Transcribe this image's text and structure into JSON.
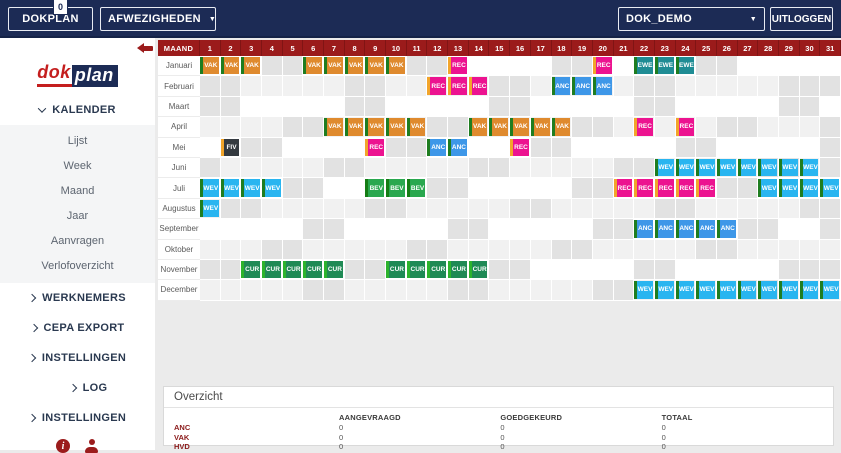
{
  "topbar": {
    "brand": "DOKPLAN",
    "notification_count": "0",
    "absence_type_select": "AFWEZIGHEDEN",
    "environment_select": "DOK_DEMO",
    "logout_label": "UITLOGGEN"
  },
  "sidebar": {
    "logo_dok": "dok",
    "logo_plan": "plan",
    "info_glyph": "i",
    "sections": [
      {
        "label": "KALENDER",
        "state": "expanded",
        "items": [
          "Lijst",
          "Week",
          "Maand",
          "Jaar",
          "Aanvragen",
          "Verlofoverzicht"
        ]
      },
      {
        "label": "WERKNEMERS",
        "state": "collapsed"
      },
      {
        "label": "CEPA EXPORT",
        "state": "collapsed"
      },
      {
        "label": "INSTELLINGEN",
        "state": "collapsed"
      },
      {
        "label": "LOG",
        "state": "collapsed",
        "indent": true
      },
      {
        "label": "INSTELLINGEN",
        "state": "collapsed"
      }
    ]
  },
  "calendar": {
    "corner_header": "MAAND",
    "day_count": 31,
    "header_color": "#9b1b1b",
    "badge_types": {
      "VAK": {
        "bg": "#df8a2e",
        "edge": "#1f7d20"
      },
      "REC": {
        "bg": "#ec1390",
        "edge": "#f2a52b"
      },
      "EWE": {
        "bg": "#1f8c94",
        "edge": "#1f7d20"
      },
      "ANC": {
        "bg": "#3e97e8",
        "edge": "#1f7d20"
      },
      "FIV": {
        "bg": "#343a40",
        "edge": "#f2a52b"
      },
      "WEV": {
        "bg": "#29b5f0",
        "edge": "#1f7d20"
      },
      "BEV": {
        "bg": "#2aa84f",
        "edge": "#157d15"
      },
      "CUR": {
        "bg": "#1f8a55",
        "edge": "#2db32d"
      }
    },
    "months": [
      {
        "name": "Januari",
        "days": 31,
        "weekends": [
          4,
          5,
          11,
          12,
          18,
          19,
          25,
          26
        ],
        "events": [
          {
            "d": 1,
            "c": "VAK"
          },
          {
            "d": 2,
            "c": "VAK"
          },
          {
            "d": 3,
            "c": "VAK"
          },
          {
            "d": 6,
            "c": "VAK"
          },
          {
            "d": 7,
            "c": "VAK"
          },
          {
            "d": 8,
            "c": "VAK"
          },
          {
            "d": 9,
            "c": "VAK"
          },
          {
            "d": 10,
            "c": "VAK"
          },
          {
            "d": 13,
            "c": "REC"
          },
          {
            "d": 20,
            "c": "REC"
          },
          {
            "d": 22,
            "c": "EWE"
          },
          {
            "d": 23,
            "c": "EWE"
          },
          {
            "d": 24,
            "c": "EWE"
          }
        ]
      },
      {
        "name": "Februari",
        "days": 28,
        "weekends": [
          1,
          2,
          8,
          9,
          15,
          16,
          22,
          23
        ],
        "events": [
          {
            "d": 12,
            "c": "REC"
          },
          {
            "d": 13,
            "c": "REC"
          },
          {
            "d": 14,
            "c": "REC"
          },
          {
            "d": 18,
            "c": "ANC"
          },
          {
            "d": 19,
            "c": "ANC"
          },
          {
            "d": 20,
            "c": "ANC"
          }
        ]
      },
      {
        "name": "Maart",
        "days": 31,
        "weekends": [
          1,
          2,
          8,
          9,
          15,
          16,
          22,
          23,
          29,
          30
        ],
        "events": []
      },
      {
        "name": "April",
        "days": 30,
        "weekends": [
          5,
          6,
          12,
          13,
          19,
          20,
          26,
          27
        ],
        "events": [
          {
            "d": 7,
            "c": "VAK"
          },
          {
            "d": 8,
            "c": "VAK"
          },
          {
            "d": 9,
            "c": "VAK"
          },
          {
            "d": 10,
            "c": "VAK"
          },
          {
            "d": 11,
            "c": "VAK"
          },
          {
            "d": 14,
            "c": "VAK"
          },
          {
            "d": 15,
            "c": "VAK"
          },
          {
            "d": 16,
            "c": "VAK"
          },
          {
            "d": 17,
            "c": "VAK"
          },
          {
            "d": 18,
            "c": "VAK"
          },
          {
            "d": 22,
            "c": "REC"
          },
          {
            "d": 24,
            "c": "REC"
          }
        ]
      },
      {
        "name": "Mei",
        "days": 31,
        "weekends": [
          3,
          4,
          10,
          11,
          17,
          18,
          24,
          25,
          31
        ],
        "events": [
          {
            "d": 2,
            "c": "FIV"
          },
          {
            "d": 9,
            "c": "REC"
          },
          {
            "d": 12,
            "c": "ANC"
          },
          {
            "d": 13,
            "c": "ANC"
          },
          {
            "d": 16,
            "c": "REC"
          }
        ]
      },
      {
        "name": "Juni",
        "days": 30,
        "weekends": [
          1,
          7,
          8,
          14,
          15,
          21,
          22,
          28,
          29
        ],
        "events": [
          {
            "d": 23,
            "c": "WEV"
          },
          {
            "d": 24,
            "c": "WEV"
          },
          {
            "d": 25,
            "c": "WEV"
          },
          {
            "d": 26,
            "c": "WEV"
          },
          {
            "d": 27,
            "c": "WEV"
          },
          {
            "d": 28,
            "c": "WEV"
          },
          {
            "d": 29,
            "c": "WEV"
          },
          {
            "d": 30,
            "c": "WEV"
          }
        ]
      },
      {
        "name": "Juli",
        "days": 31,
        "weekends": [
          5,
          6,
          12,
          13,
          19,
          20,
          26,
          27
        ],
        "events": [
          {
            "d": 1,
            "c": "WEV"
          },
          {
            "d": 2,
            "c": "WEV"
          },
          {
            "d": 3,
            "c": "WEV"
          },
          {
            "d": 4,
            "c": "WEV"
          },
          {
            "d": 9,
            "c": "BEV"
          },
          {
            "d": 10,
            "c": "BEV"
          },
          {
            "d": 11,
            "c": "BEV"
          },
          {
            "d": 21,
            "c": "REC"
          },
          {
            "d": 22,
            "c": "REC"
          },
          {
            "d": 23,
            "c": "REC"
          },
          {
            "d": 24,
            "c": "REC"
          },
          {
            "d": 25,
            "c": "REC"
          },
          {
            "d": 28,
            "c": "WEV"
          },
          {
            "d": 29,
            "c": "WEV"
          },
          {
            "d": 30,
            "c": "WEV"
          },
          {
            "d": 31,
            "c": "WEV"
          }
        ]
      },
      {
        "name": "Augustus",
        "days": 31,
        "weekends": [
          2,
          3,
          9,
          10,
          16,
          17,
          23,
          24,
          30,
          31
        ],
        "events": [
          {
            "d": 1,
            "c": "WEV"
          }
        ]
      },
      {
        "name": "September",
        "days": 30,
        "weekends": [
          6,
          7,
          13,
          14,
          20,
          21,
          27,
          28
        ],
        "events": [
          {
            "d": 22,
            "c": "ANC"
          },
          {
            "d": 23,
            "c": "ANC"
          },
          {
            "d": 24,
            "c": "ANC"
          },
          {
            "d": 25,
            "c": "ANC"
          },
          {
            "d": 26,
            "c": "ANC"
          }
        ]
      },
      {
        "name": "Oktober",
        "days": 31,
        "weekends": [
          4,
          5,
          11,
          12,
          18,
          19,
          25,
          26
        ],
        "events": []
      },
      {
        "name": "November",
        "days": 30,
        "weekends": [
          1,
          2,
          8,
          9,
          15,
          16,
          22,
          23,
          29,
          30
        ],
        "events": [
          {
            "d": 3,
            "c": "CUR"
          },
          {
            "d": 4,
            "c": "CUR"
          },
          {
            "d": 5,
            "c": "CUR"
          },
          {
            "d": 6,
            "c": "CUR"
          },
          {
            "d": 7,
            "c": "CUR"
          },
          {
            "d": 10,
            "c": "CUR"
          },
          {
            "d": 11,
            "c": "CUR"
          },
          {
            "d": 12,
            "c": "CUR"
          },
          {
            "d": 13,
            "c": "CUR"
          },
          {
            "d": 14,
            "c": "CUR"
          }
        ]
      },
      {
        "name": "December",
        "days": 31,
        "weekends": [
          6,
          7,
          13,
          14,
          20,
          21,
          27,
          28
        ],
        "events": [
          {
            "d": 22,
            "c": "WEV"
          },
          {
            "d": 23,
            "c": "WEV"
          },
          {
            "d": 24,
            "c": "WEV"
          },
          {
            "d": 25,
            "c": "WEV"
          },
          {
            "d": 26,
            "c": "WEV"
          },
          {
            "d": 27,
            "c": "WEV"
          },
          {
            "d": 28,
            "c": "WEV"
          },
          {
            "d": 29,
            "c": "WEV"
          },
          {
            "d": 30,
            "c": "WEV"
          },
          {
            "d": 31,
            "c": "WEV"
          }
        ]
      }
    ]
  },
  "overview": {
    "title": "Overzicht",
    "columns": [
      "AANGEVRAAGD",
      "GOEDGEKEURD",
      "TOTAAL"
    ],
    "rows": [
      {
        "label": "ANC",
        "values": [
          "0",
          "0",
          "0"
        ]
      },
      {
        "label": "VAK",
        "values": [
          "0",
          "0",
          "0"
        ]
      },
      {
        "label": "HVD",
        "values": [
          "0",
          "0",
          "0"
        ]
      }
    ]
  }
}
